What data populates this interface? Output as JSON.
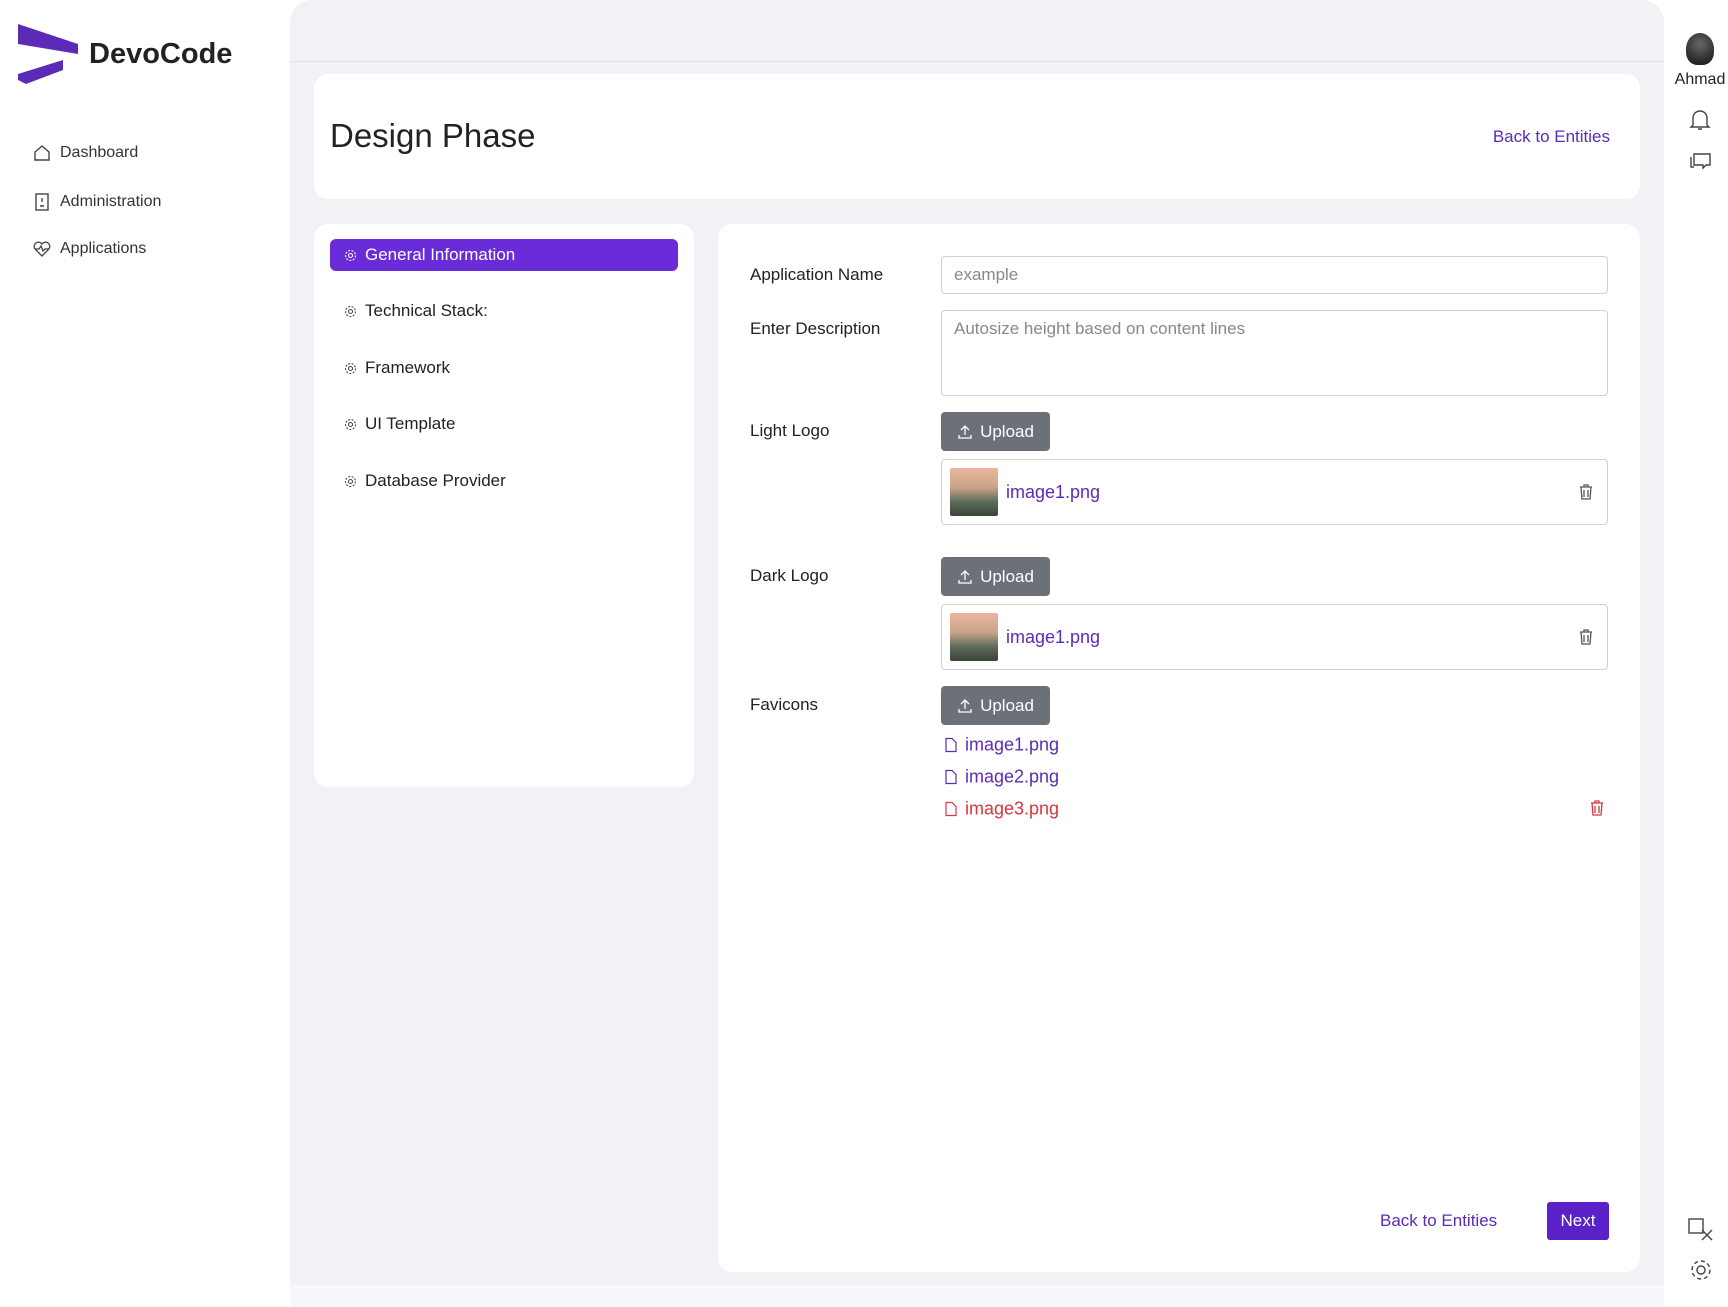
{
  "brand": "DevoCode",
  "nav": [
    "Dashboard",
    "Administration",
    "Applications"
  ],
  "user": "Ahmad",
  "header": {
    "title": "Design Phase",
    "back_link": "Back to Entities"
  },
  "tabs": [
    "General Information",
    "Technical Stack:",
    "Framework",
    "UI Template",
    "Database Provider"
  ],
  "form": {
    "app_name_label": "Application Name",
    "app_name_placeholder": "example",
    "description_label": "Enter Description",
    "description_placeholder": "Autosize height based on content lines",
    "light_logo_label": "Light Logo",
    "dark_logo_label": "Dark Logo",
    "favicons_label": "Favicons",
    "upload": "Upload",
    "light_logo_file": "image1.png",
    "dark_logo_file": "image1.png",
    "favicon_files": [
      "image1.png",
      "image2.png",
      "image3.png"
    ]
  },
  "footer": {
    "back_link": "Back to Entities",
    "next": "Next"
  }
}
